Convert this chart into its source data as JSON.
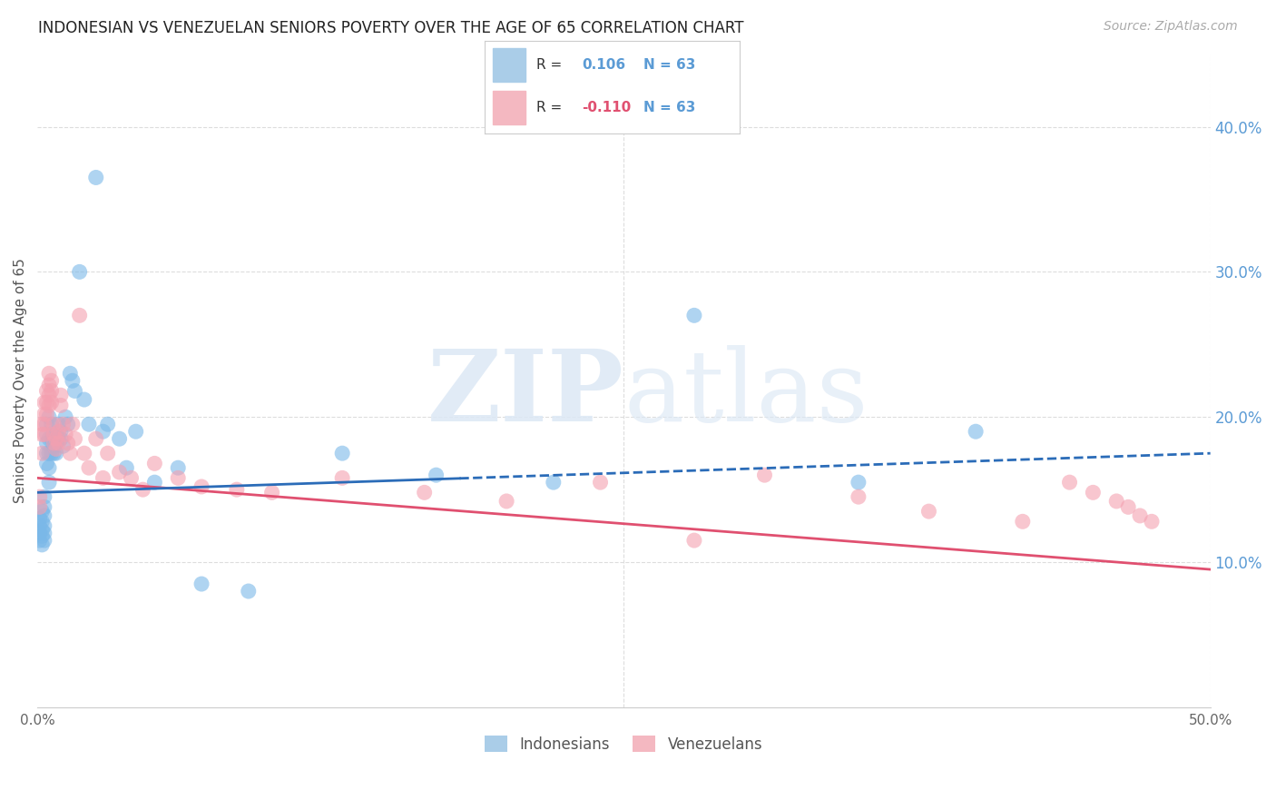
{
  "title": "INDONESIAN VS VENEZUELAN SENIORS POVERTY OVER THE AGE OF 65 CORRELATION CHART",
  "source": "Source: ZipAtlas.com",
  "ylabel": "Seniors Poverty Over the Age of 65",
  "xlim": [
    0.0,
    0.5
  ],
  "ylim": [
    0.0,
    0.45
  ],
  "ytick_vals": [
    0.1,
    0.2,
    0.3,
    0.4
  ],
  "ytick_labels_right": [
    "10.0%",
    "20.0%",
    "30.0%",
    "40.0%"
  ],
  "grid_color": "#dddddd",
  "background_color": "#ffffff",
  "indonesian_color": "#7ab8e8",
  "venezuelan_color": "#f4a0b0",
  "indonesian_line_color": "#2b6cb8",
  "venezuelan_line_color": "#e05070",
  "R_indonesian": "0.106",
  "N_indonesian": "63",
  "R_venezuelan": "-0.110",
  "N_venezuelan": "63",
  "legend_label_indonesian": "Indonesians",
  "legend_label_venezuelan": "Venezuelans",
  "indo_line_solid_end": 0.18,
  "indo_line_start_y": 0.148,
  "indo_line_end_y": 0.175,
  "vene_line_start_y": 0.158,
  "vene_line_end_y": 0.095,
  "indonesian_x": [
    0.001,
    0.001,
    0.001,
    0.001,
    0.002,
    0.002,
    0.002,
    0.002,
    0.002,
    0.003,
    0.003,
    0.003,
    0.003,
    0.003,
    0.003,
    0.004,
    0.004,
    0.004,
    0.004,
    0.004,
    0.005,
    0.005,
    0.005,
    0.005,
    0.005,
    0.006,
    0.006,
    0.006,
    0.007,
    0.007,
    0.007,
    0.008,
    0.008,
    0.008,
    0.009,
    0.009,
    0.01,
    0.01,
    0.011,
    0.012,
    0.013,
    0.014,
    0.015,
    0.016,
    0.018,
    0.02,
    0.022,
    0.025,
    0.028,
    0.03,
    0.035,
    0.038,
    0.042,
    0.05,
    0.06,
    0.07,
    0.09,
    0.13,
    0.17,
    0.22,
    0.28,
    0.35,
    0.4
  ],
  "indonesian_y": [
    0.13,
    0.125,
    0.12,
    0.115,
    0.135,
    0.128,
    0.122,
    0.118,
    0.112,
    0.145,
    0.138,
    0.132,
    0.125,
    0.12,
    0.115,
    0.195,
    0.188,
    0.182,
    0.175,
    0.168,
    0.2,
    0.185,
    0.175,
    0.165,
    0.155,
    0.195,
    0.185,
    0.175,
    0.185,
    0.18,
    0.175,
    0.188,
    0.182,
    0.175,
    0.195,
    0.185,
    0.19,
    0.185,
    0.18,
    0.2,
    0.195,
    0.23,
    0.225,
    0.218,
    0.3,
    0.212,
    0.195,
    0.365,
    0.19,
    0.195,
    0.185,
    0.165,
    0.19,
    0.155,
    0.165,
    0.085,
    0.08,
    0.175,
    0.16,
    0.155,
    0.27,
    0.155,
    0.19
  ],
  "venezuelan_x": [
    0.001,
    0.001,
    0.002,
    0.002,
    0.002,
    0.003,
    0.003,
    0.003,
    0.003,
    0.004,
    0.004,
    0.004,
    0.005,
    0.005,
    0.005,
    0.005,
    0.006,
    0.006,
    0.006,
    0.007,
    0.007,
    0.007,
    0.008,
    0.008,
    0.009,
    0.009,
    0.01,
    0.01,
    0.011,
    0.012,
    0.013,
    0.014,
    0.015,
    0.016,
    0.018,
    0.02,
    0.022,
    0.025,
    0.028,
    0.03,
    0.035,
    0.04,
    0.045,
    0.05,
    0.06,
    0.07,
    0.085,
    0.1,
    0.13,
    0.165,
    0.2,
    0.24,
    0.28,
    0.31,
    0.35,
    0.38,
    0.42,
    0.44,
    0.45,
    0.46,
    0.465,
    0.47,
    0.475
  ],
  "venezuelan_y": [
    0.145,
    0.138,
    0.195,
    0.188,
    0.175,
    0.21,
    0.202,
    0.195,
    0.188,
    0.218,
    0.21,
    0.202,
    0.23,
    0.222,
    0.215,
    0.208,
    0.225,
    0.218,
    0.21,
    0.195,
    0.188,
    0.182,
    0.185,
    0.178,
    0.19,
    0.182,
    0.215,
    0.208,
    0.195,
    0.188,
    0.182,
    0.175,
    0.195,
    0.185,
    0.27,
    0.175,
    0.165,
    0.185,
    0.158,
    0.175,
    0.162,
    0.158,
    0.15,
    0.168,
    0.158,
    0.152,
    0.15,
    0.148,
    0.158,
    0.148,
    0.142,
    0.155,
    0.115,
    0.16,
    0.145,
    0.135,
    0.128,
    0.155,
    0.148,
    0.142,
    0.138,
    0.132,
    0.128
  ]
}
